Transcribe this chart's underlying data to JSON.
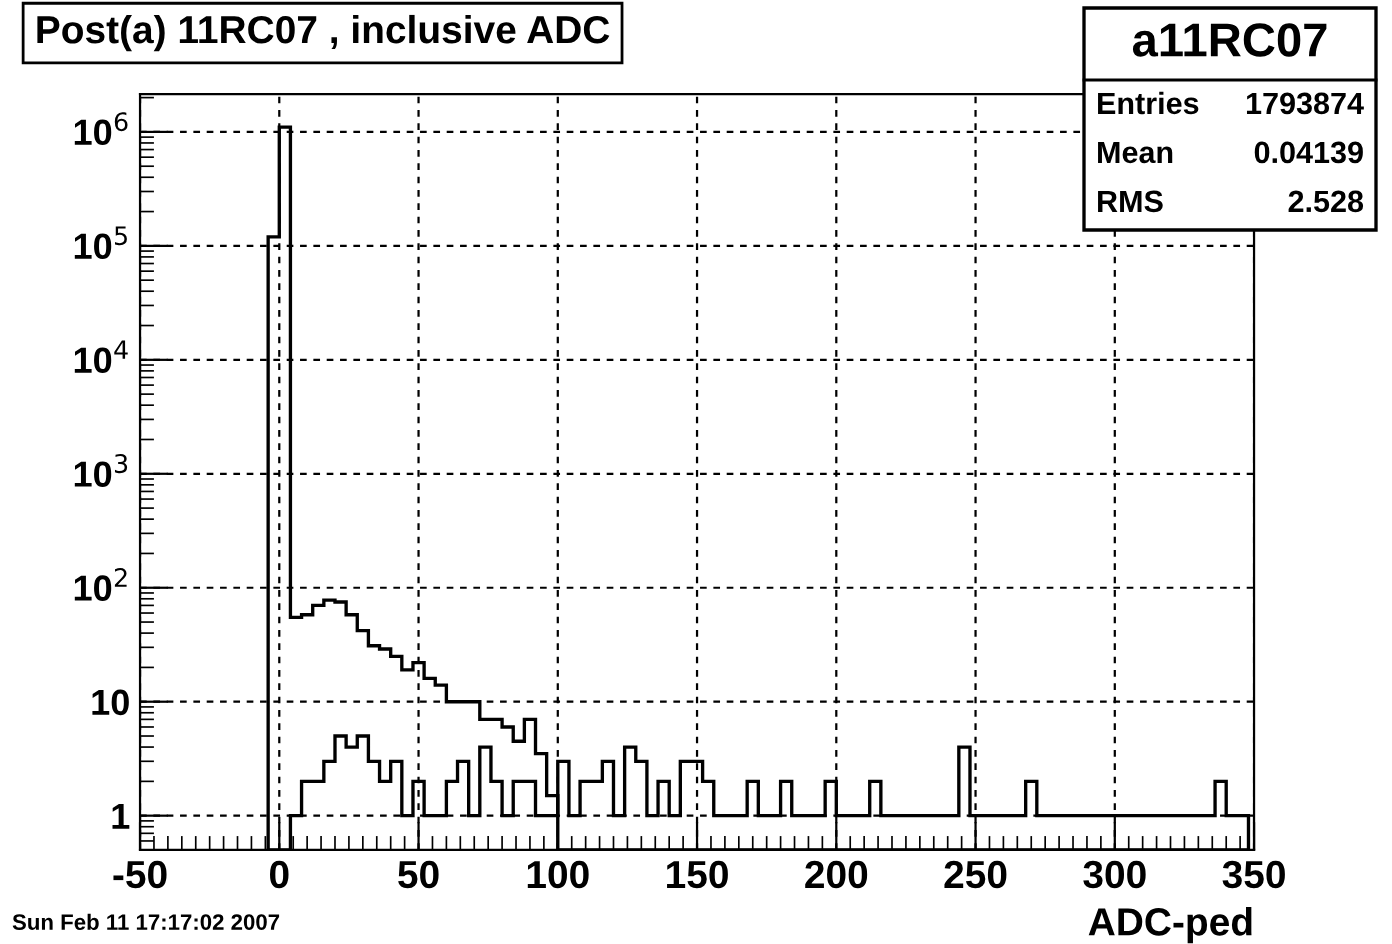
{
  "chart_data": {
    "type": "histogram",
    "title": "Post(a) 11RC07 , inclusive ADC",
    "xlabel": "ADC-ped",
    "bins": [
      -4,
      0,
      4,
      8,
      12,
      16,
      20,
      24,
      28,
      32,
      36,
      40,
      44,
      48,
      52,
      56,
      60,
      64,
      68,
      72,
      76,
      80,
      84,
      88,
      92,
      96,
      100,
      104,
      108,
      112,
      116,
      120,
      124,
      128,
      132,
      136,
      140,
      144,
      148,
      152,
      156,
      160,
      164,
      168,
      172,
      176,
      180,
      184,
      188,
      192,
      196,
      200,
      204,
      208,
      212,
      216,
      220,
      224,
      228,
      232,
      236,
      240,
      244,
      248,
      252,
      256,
      260,
      264,
      268,
      272,
      276,
      280,
      284,
      288,
      292,
      296,
      300,
      304,
      308,
      312,
      316,
      320,
      324,
      328,
      332,
      336,
      340,
      344,
      348
    ],
    "series": [
      {
        "color": "#000000",
        "values": [
          120000,
          1100000,
          55,
          58,
          70,
          78,
          75,
          58,
          42,
          31,
          29,
          25,
          19,
          22,
          16,
          14,
          10,
          10,
          10,
          7,
          7,
          6,
          4.5,
          7,
          3.5,
          1.5,
          null,
          null,
          null,
          null,
          null,
          null,
          null,
          null,
          null,
          null,
          null,
          null,
          null,
          null,
          null,
          null,
          null,
          null,
          null,
          null,
          null,
          null,
          null,
          null,
          null,
          null,
          null,
          null,
          null,
          null,
          null,
          null,
          null,
          null,
          null,
          null,
          null,
          null,
          null,
          null,
          null,
          null,
          null,
          null,
          null,
          null,
          null,
          null,
          null,
          null,
          null,
          null,
          null,
          null,
          null,
          null,
          null,
          null,
          null,
          null,
          null,
          null
        ]
      },
      {
        "color": "#000000",
        "values": [
          null,
          null,
          1,
          2,
          2,
          3,
          5,
          4,
          5,
          3,
          2,
          3,
          1,
          2,
          1,
          1,
          2,
          3,
          1,
          4,
          2,
          1,
          2,
          2,
          1,
          1,
          3,
          1,
          2,
          2,
          3,
          1,
          4,
          3,
          1,
          2,
          1,
          3,
          3,
          2,
          1,
          1,
          1,
          2,
          1,
          1,
          2,
          1,
          1,
          1,
          2,
          1,
          1,
          1,
          2,
          1,
          1,
          1,
          1,
          1,
          1,
          1,
          4,
          1,
          1,
          1,
          1,
          1,
          2,
          1,
          1,
          1,
          1,
          1,
          1,
          1,
          1,
          1,
          1,
          1,
          1,
          1,
          1,
          1,
          1,
          2,
          1,
          1
        ]
      }
    ],
    "xlim": [
      -50,
      350
    ],
    "xticks": [
      -50,
      0,
      50,
      100,
      150,
      200,
      250,
      300,
      350
    ],
    "ylim": [
      0.5,
      2150000
    ],
    "log": "y",
    "yticks": [
      1,
      10,
      {
        "value": 100,
        "label": "10$^{2}$"
      },
      {
        "value": 1000,
        "label": "10$^{3}$"
      },
      {
        "value": 10000,
        "label": "10$^{4}$"
      },
      {
        "value": 100000,
        "label": "10$^{5}$"
      },
      {
        "value": 1000000,
        "label": "10$^{6}$"
      }
    ],
    "grid": true,
    "line_style": "solid",
    "annotations": [
      "a11RC07",
      "Entries",
      "1793874",
      "Mean",
      "0.04139",
      "RMS",
      "2.528",
      "Sun Feb 11 17:17:02 2007"
    ]
  }
}
